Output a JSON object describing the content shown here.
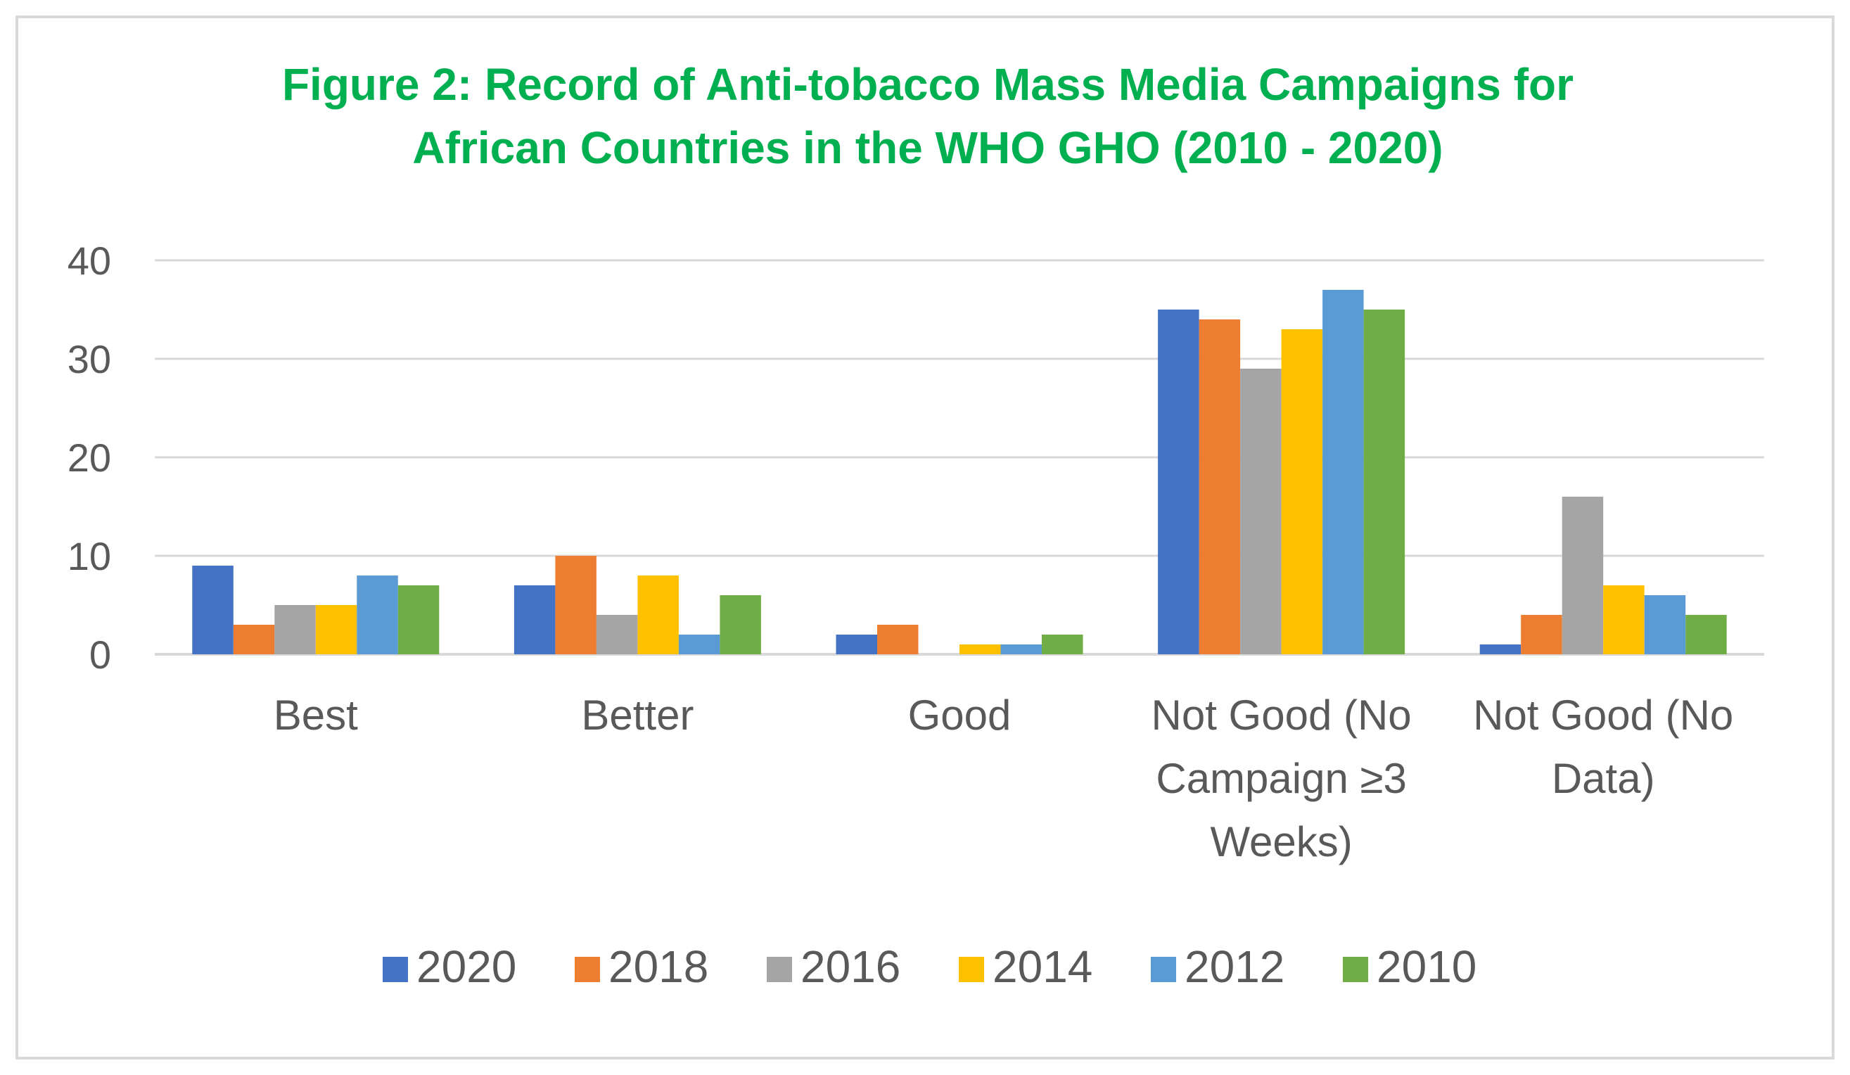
{
  "chart_data": {
    "type": "bar",
    "title": "Figure 2: Record of Anti-tobacco Mass Media Campaigns for African Countries in the WHO GHO (2010 - 2020)",
    "title_lines": [
      "Figure 2: Record of Anti-tobacco Mass Media Campaigns for",
      "African Countries in the WHO GHO (2010 - 2020)"
    ],
    "categories": [
      "Best",
      "Better",
      "Good",
      "Not Good (No Campaign ≥3 Weeks)",
      "Not Good (No Data)"
    ],
    "category_lines": [
      [
        "Best"
      ],
      [
        "Better"
      ],
      [
        "Good"
      ],
      [
        "Not Good (No",
        "Campaign ≥3",
        "Weeks)"
      ],
      [
        "Not Good (No",
        "Data)"
      ]
    ],
    "series": [
      {
        "name": "2020",
        "color": "#4472c4",
        "values": [
          9,
          7,
          2,
          35,
          1
        ]
      },
      {
        "name": "2018",
        "color": "#ed7d31",
        "values": [
          3,
          10,
          3,
          34,
          4
        ]
      },
      {
        "name": "2016",
        "color": "#a5a5a5",
        "values": [
          5,
          4,
          0,
          29,
          16
        ]
      },
      {
        "name": "2014",
        "color": "#ffc000",
        "values": [
          5,
          8,
          1,
          33,
          7
        ]
      },
      {
        "name": "2012",
        "color": "#5b9bd5",
        "values": [
          8,
          2,
          1,
          37,
          6
        ]
      },
      {
        "name": "2010",
        "color": "#70ad47",
        "values": [
          7,
          6,
          2,
          35,
          4
        ]
      }
    ],
    "xlabel": "",
    "ylabel": "",
    "ylim": [
      0,
      40
    ],
    "yticks": [
      0,
      10,
      20,
      30,
      40
    ],
    "grid": true,
    "legend_position": "bottom",
    "title_color": "#00b050",
    "grid_color": "#d9d9d9",
    "text_color": "#595959"
  }
}
